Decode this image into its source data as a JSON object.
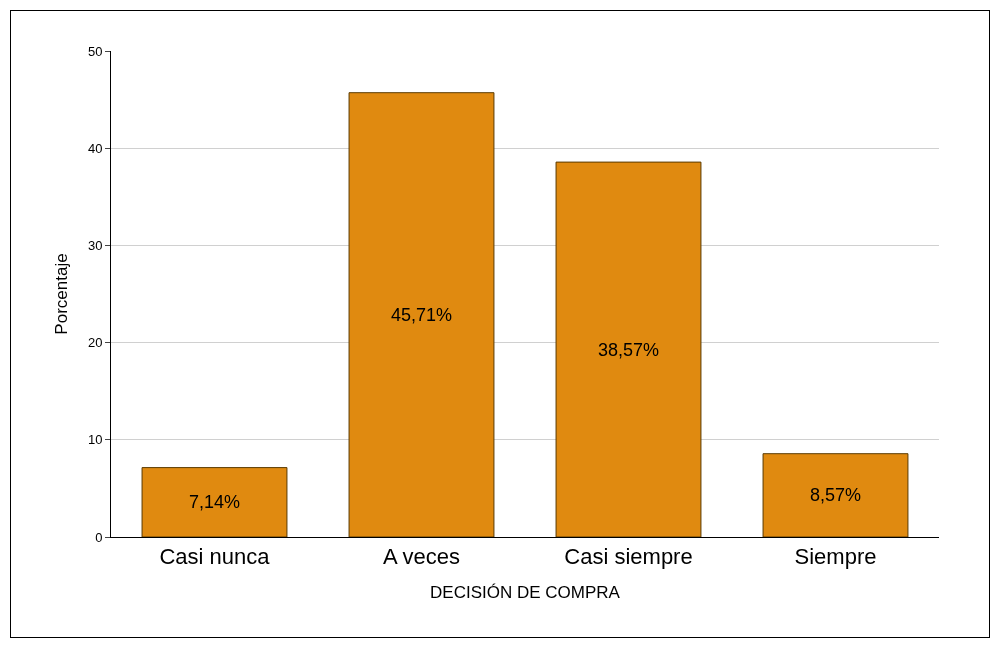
{
  "chart_data": {
    "type": "bar",
    "xlabel": "DECISIÓN DE COMPRA",
    "ylabel": "Porcentaje",
    "categories": [
      "Casi nunca",
      "A veces",
      "Casi siempre",
      "Siempre"
    ],
    "values": [
      7.14,
      45.71,
      38.57,
      8.57
    ],
    "value_labels": [
      "7,14%",
      "45,71%",
      "38,57%",
      "8,57%"
    ],
    "color": "#e08a10",
    "ylim": [
      0,
      50
    ],
    "yticks": [
      0,
      10,
      20,
      30,
      40,
      50
    ],
    "grid": "y",
    "legend": false
  }
}
